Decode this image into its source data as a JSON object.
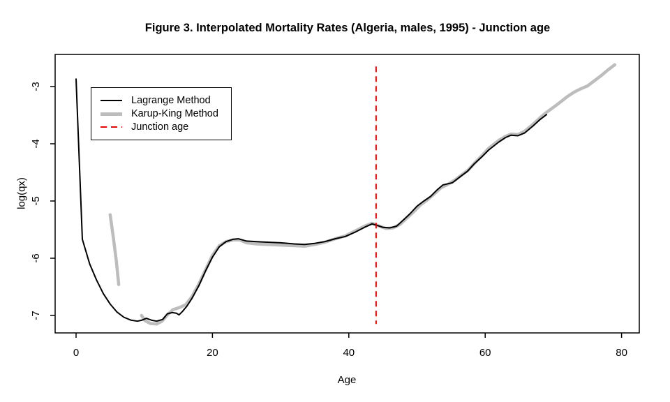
{
  "chart_data": {
    "type": "line",
    "title": "Figure 3. Interpolated Mortality Rates (Algeria, males, 1995) - Junction age",
    "xlabel": "Age",
    "ylabel": "log(qx)",
    "grid": false,
    "legend_position": "top-left",
    "x_ticks": [
      "0",
      "20",
      "40",
      "60",
      "80"
    ],
    "y_ticks": [
      "-3",
      "-4",
      "-5",
      "-6",
      "-7"
    ],
    "x_tick_values": [
      0,
      20,
      40,
      60,
      80
    ],
    "y_tick_values": [
      -3,
      -4,
      -5,
      -6,
      -7
    ],
    "xlim": [
      -3.07,
      82.6
    ],
    "ylim": [
      -7.305,
      -2.439
    ],
    "axis_color": "#000000",
    "junction": {
      "label": "Junction age",
      "age": 44,
      "color": "#ee0000",
      "y_range": [
        -7.15,
        -2.65
      ]
    },
    "series": [
      {
        "name": "Lagrange Method",
        "color": "#000000",
        "width": 2,
        "style": "solid",
        "segments": [
          [
            [
              0,
              -2.87
            ],
            [
              0.92,
              -5.67
            ],
            [
              2,
              -6.1
            ],
            [
              3,
              -6.38
            ],
            [
              4,
              -6.62
            ],
            [
              5,
              -6.8
            ],
            [
              6,
              -6.94
            ],
            [
              7,
              -7.03
            ],
            [
              8,
              -7.08
            ],
            [
              9,
              -7.1
            ],
            [
              9.7,
              -7.08
            ],
            [
              10.3,
              -7.05
            ],
            [
              11,
              -7.08
            ],
            [
              11.8,
              -7.1
            ],
            [
              12.7,
              -7.07
            ],
            [
              13.4,
              -6.97
            ],
            [
              14.1,
              -6.95
            ],
            [
              14.7,
              -6.96
            ],
            [
              15.1,
              -6.99
            ],
            [
              15.6,
              -6.93
            ],
            [
              16.3,
              -6.83
            ],
            [
              17,
              -6.7
            ],
            [
              18,
              -6.48
            ],
            [
              19,
              -6.22
            ],
            [
              20,
              -5.98
            ],
            [
              21,
              -5.8
            ],
            [
              22,
              -5.71
            ],
            [
              23,
              -5.67
            ],
            [
              23.8,
              -5.66
            ],
            [
              25,
              -5.7
            ],
            [
              26.5,
              -5.71
            ],
            [
              28,
              -5.72
            ],
            [
              30,
              -5.73
            ],
            [
              32,
              -5.75
            ],
            [
              33.5,
              -5.76
            ],
            [
              35,
              -5.74
            ],
            [
              36.5,
              -5.71
            ],
            [
              38,
              -5.66
            ],
            [
              39.5,
              -5.62
            ],
            [
              41,
              -5.54
            ],
            [
              42.3,
              -5.46
            ],
            [
              43.4,
              -5.4
            ],
            [
              44,
              -5.42
            ],
            [
              45,
              -5.46
            ],
            [
              46,
              -5.47
            ],
            [
              47,
              -5.44
            ],
            [
              48,
              -5.33
            ],
            [
              49,
              -5.22
            ],
            [
              50,
              -5.09
            ],
            [
              51,
              -5.0
            ],
            [
              52,
              -4.92
            ],
            [
              53,
              -4.8
            ],
            [
              53.8,
              -4.72
            ],
            [
              55.2,
              -4.68
            ],
            [
              56.4,
              -4.57
            ],
            [
              57.4,
              -4.48
            ],
            [
              58.4,
              -4.35
            ],
            [
              59.5,
              -4.23
            ],
            [
              60.5,
              -4.11
            ],
            [
              62,
              -3.97
            ],
            [
              63,
              -3.89
            ],
            [
              63.8,
              -3.85
            ],
            [
              64.8,
              -3.86
            ],
            [
              65.8,
              -3.81
            ],
            [
              67,
              -3.69
            ],
            [
              68,
              -3.58
            ],
            [
              69,
              -3.49
            ]
          ]
        ]
      },
      {
        "name": "Karup-King Method",
        "color": "#bdbdbd",
        "width": 4.5,
        "style": "solid",
        "segments": [
          [
            [
              5,
              -5.24
            ],
            [
              5.45,
              -5.62
            ],
            [
              5.9,
              -6.04
            ],
            [
              6.25,
              -6.46
            ]
          ],
          [
            [
              9.6,
              -7.0
            ],
            [
              10.1,
              -7.09
            ],
            [
              10.9,
              -7.14
            ],
            [
              11.8,
              -7.15
            ],
            [
              12.6,
              -7.1
            ],
            [
              13.4,
              -6.99
            ],
            [
              14.2,
              -6.9
            ],
            [
              15.2,
              -6.86
            ],
            [
              16.1,
              -6.81
            ],
            [
              17,
              -6.67
            ],
            [
              18,
              -6.45
            ],
            [
              19,
              -6.2
            ],
            [
              20,
              -5.95
            ],
            [
              21,
              -5.78
            ],
            [
              22,
              -5.71
            ],
            [
              23,
              -5.68
            ],
            [
              24,
              -5.68
            ],
            [
              25,
              -5.73
            ],
            [
              26.5,
              -5.75
            ],
            [
              28,
              -5.76
            ],
            [
              30,
              -5.77
            ],
            [
              32,
              -5.78
            ],
            [
              33.5,
              -5.79
            ],
            [
              35,
              -5.76
            ],
            [
              36.5,
              -5.72
            ],
            [
              38,
              -5.66
            ],
            [
              39.5,
              -5.61
            ],
            [
              41,
              -5.52
            ],
            [
              42.3,
              -5.44
            ],
            [
              43.4,
              -5.39
            ],
            [
              44.5,
              -5.44
            ],
            [
              45.5,
              -5.48
            ],
            [
              46.5,
              -5.47
            ],
            [
              47.5,
              -5.41
            ],
            [
              48.5,
              -5.3
            ],
            [
              49.5,
              -5.19
            ],
            [
              50.5,
              -5.07
            ],
            [
              51.5,
              -4.98
            ],
            [
              52.5,
              -4.88
            ],
            [
              53.5,
              -4.77
            ],
            [
              54.5,
              -4.71
            ],
            [
              55.5,
              -4.64
            ],
            [
              56.5,
              -4.55
            ],
            [
              57.5,
              -4.46
            ],
            [
              58.5,
              -4.33
            ],
            [
              59.5,
              -4.21
            ],
            [
              60.5,
              -4.08
            ],
            [
              62,
              -3.94
            ],
            [
              63,
              -3.87
            ],
            [
              63.8,
              -3.83
            ],
            [
              64.8,
              -3.84
            ],
            [
              65.8,
              -3.78
            ],
            [
              67,
              -3.66
            ],
            [
              68,
              -3.55
            ],
            [
              69,
              -3.45
            ],
            [
              70.5,
              -3.32
            ],
            [
              72,
              -3.18
            ],
            [
              73,
              -3.1
            ],
            [
              74,
              -3.04
            ],
            [
              75,
              -2.99
            ],
            [
              76,
              -2.9
            ],
            [
              77,
              -2.81
            ],
            [
              78,
              -2.71
            ],
            [
              79,
              -2.62
            ]
          ]
        ]
      }
    ],
    "legend": {
      "items": [
        {
          "label": "Lagrange Method",
          "color": "#000000",
          "thickness": 2,
          "dashed": false
        },
        {
          "label": "Karup-King Method",
          "color": "#bdbdbd",
          "thickness": 5,
          "dashed": false
        },
        {
          "label": "Junction age",
          "color": "#ee0000",
          "thickness": 2,
          "dashed": true
        }
      ]
    }
  }
}
